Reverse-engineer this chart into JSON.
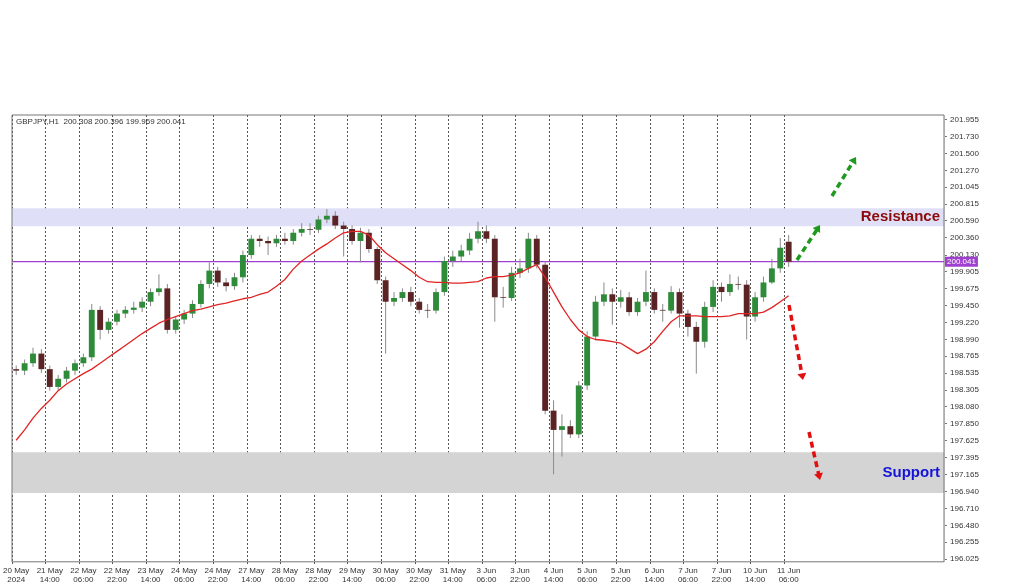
{
  "chart_data": {
    "type": "candlestick",
    "categories": [
      "20 May 2024",
      null,
      null,
      null,
      "21 May 14:00",
      null,
      null,
      null,
      "22 May 06:00",
      null,
      null,
      null,
      "22 May 22:00",
      null,
      null,
      null,
      "23 May 14:00",
      null,
      null,
      null,
      "24 May 06:00",
      null,
      null,
      null,
      "24 May 22:00",
      null,
      null,
      null,
      "27 May 14:00",
      null,
      null,
      null,
      "28 May 06:00",
      null,
      null,
      null,
      "28 May 22:00",
      null,
      null,
      null,
      "29 May 14:00",
      null,
      null,
      null,
      "30 May 06:00",
      null,
      null,
      null,
      "30 May 22:00",
      null,
      null,
      null,
      "31 May 14:00",
      null,
      null,
      null,
      "3 Jun 06:00",
      null,
      null,
      null,
      "3 Jun 22:00",
      null,
      null,
      null,
      "4 Jun 14:00",
      null,
      null,
      null,
      "5 Jun 06:00",
      null,
      null,
      null,
      "5 Jun 22:00",
      null,
      null,
      null,
      "6 Jun 14:00",
      null,
      null,
      null,
      "7 Jun 06:00",
      null,
      null,
      null,
      "7 Jun 22:00",
      null,
      null,
      null,
      "10 Jun 14:00",
      null,
      null,
      null,
      "11 Jun 06:00",
      null,
      null,
      null,
      null,
      null,
      null,
      null,
      null,
      null,
      null,
      null,
      null,
      null,
      null,
      null,
      null,
      null,
      null
    ],
    "ohlc": [
      [
        198.59,
        198.64,
        198.51,
        198.57
      ],
      [
        198.57,
        198.72,
        198.51,
        198.67
      ],
      [
        198.67,
        198.88,
        198.62,
        198.8
      ],
      [
        198.8,
        198.86,
        198.54,
        198.59
      ],
      [
        198.59,
        198.64,
        198.3,
        198.35
      ],
      [
        198.35,
        198.51,
        198.3,
        198.46
      ],
      [
        198.46,
        198.62,
        198.41,
        198.57
      ],
      [
        198.57,
        198.72,
        198.51,
        198.67
      ],
      [
        198.67,
        198.8,
        198.62,
        198.75
      ],
      [
        198.75,
        199.47,
        198.7,
        199.39
      ],
      [
        199.39,
        199.44,
        198.99,
        199.12
      ],
      [
        199.12,
        199.28,
        199.07,
        199.23
      ],
      [
        199.23,
        199.39,
        199.18,
        199.34
      ],
      [
        199.34,
        199.44,
        199.28,
        199.39
      ],
      [
        199.39,
        199.5,
        199.34,
        199.42
      ],
      [
        199.42,
        199.56,
        199.36,
        199.5
      ],
      [
        199.5,
        199.68,
        199.44,
        199.63
      ],
      [
        199.63,
        199.87,
        199.58,
        199.68
      ],
      [
        199.68,
        199.74,
        199.07,
        199.12
      ],
      [
        199.12,
        199.31,
        199.07,
        199.26
      ],
      [
        199.26,
        199.39,
        199.2,
        199.34
      ],
      [
        199.34,
        199.52,
        199.28,
        199.47
      ],
      [
        199.47,
        199.79,
        199.42,
        199.74
      ],
      [
        199.74,
        200.03,
        199.68,
        199.92
      ],
      [
        199.92,
        199.97,
        199.7,
        199.76
      ],
      [
        199.76,
        199.82,
        199.64,
        199.71
      ],
      [
        199.71,
        199.89,
        199.66,
        199.83
      ],
      [
        199.83,
        200.19,
        199.76,
        200.13
      ],
      [
        200.13,
        200.4,
        200.08,
        200.35
      ],
      [
        200.35,
        200.4,
        200.24,
        200.32
      ],
      [
        200.32,
        200.38,
        200.13,
        200.29
      ],
      [
        200.29,
        200.4,
        200.24,
        200.35
      ],
      [
        200.35,
        200.43,
        200.27,
        200.32
      ],
      [
        200.32,
        200.48,
        200.27,
        200.43
      ],
      [
        200.43,
        200.56,
        200.38,
        200.48
      ],
      [
        200.48,
        200.56,
        200.4,
        200.47
      ],
      [
        200.47,
        200.66,
        200.43,
        200.61
      ],
      [
        200.61,
        200.75,
        200.56,
        200.66
      ],
      [
        200.66,
        200.72,
        200.48,
        200.53
      ],
      [
        200.53,
        200.58,
        200.11,
        200.48
      ],
      [
        200.48,
        200.53,
        200.27,
        200.32
      ],
      [
        200.32,
        200.5,
        200.03,
        200.43
      ],
      [
        200.43,
        200.48,
        200.16,
        200.21
      ],
      [
        200.21,
        200.24,
        199.74,
        199.79
      ],
      [
        199.79,
        199.84,
        198.8,
        199.5
      ],
      [
        199.5,
        199.63,
        199.44,
        199.55
      ],
      [
        199.55,
        199.68,
        199.5,
        199.63
      ],
      [
        199.63,
        199.7,
        199.44,
        199.5
      ],
      [
        199.5,
        199.55,
        199.34,
        199.39
      ],
      [
        199.39,
        199.47,
        199.28,
        199.38
      ],
      [
        199.38,
        199.68,
        199.34,
        199.63
      ],
      [
        199.63,
        200.11,
        199.58,
        200.05
      ],
      [
        200.05,
        200.19,
        199.97,
        200.11
      ],
      [
        200.11,
        200.27,
        200.05,
        200.19
      ],
      [
        200.19,
        200.43,
        200.13,
        200.35
      ],
      [
        200.35,
        200.58,
        200.29,
        200.45
      ],
      [
        200.45,
        200.53,
        200.29,
        200.35
      ],
      [
        200.35,
        200.4,
        199.23,
        199.56
      ],
      [
        199.56,
        199.7,
        199.42,
        199.55
      ],
      [
        199.55,
        199.97,
        199.51,
        199.89
      ],
      [
        199.89,
        200.08,
        199.82,
        199.95
      ],
      [
        199.95,
        200.43,
        199.89,
        200.35
      ],
      [
        200.35,
        200.4,
        199.95,
        200.0
      ],
      [
        200.0,
        200.05,
        197.98,
        198.03
      ],
      [
        198.03,
        198.17,
        197.17,
        197.77
      ],
      [
        197.77,
        197.98,
        197.41,
        197.82
      ],
      [
        197.82,
        197.9,
        197.66,
        197.71
      ],
      [
        197.71,
        198.43,
        197.66,
        198.37
      ],
      [
        198.37,
        199.1,
        198.31,
        199.03
      ],
      [
        199.03,
        199.58,
        198.98,
        199.5
      ],
      [
        199.5,
        199.76,
        199.44,
        199.6
      ],
      [
        199.6,
        199.68,
        199.19,
        199.5
      ],
      [
        199.5,
        199.66,
        199.42,
        199.56
      ],
      [
        199.56,
        199.63,
        199.31,
        199.36
      ],
      [
        199.36,
        199.55,
        199.31,
        199.5
      ],
      [
        199.5,
        199.92,
        199.44,
        199.63
      ],
      [
        199.63,
        199.68,
        199.34,
        199.39
      ],
      [
        199.39,
        199.47,
        199.23,
        199.38
      ],
      [
        199.38,
        199.71,
        199.34,
        199.63
      ],
      [
        199.63,
        199.68,
        199.15,
        199.34
      ],
      [
        199.34,
        199.39,
        199.03,
        199.16
      ],
      [
        199.16,
        199.23,
        198.53,
        198.96
      ],
      [
        198.96,
        199.5,
        198.88,
        199.43
      ],
      [
        199.43,
        199.79,
        199.36,
        199.7
      ],
      [
        199.7,
        199.76,
        199.5,
        199.63
      ],
      [
        199.63,
        199.87,
        199.58,
        199.74
      ],
      [
        199.74,
        199.84,
        199.66,
        199.73
      ],
      [
        199.73,
        199.79,
        198.99,
        199.3
      ],
      [
        199.3,
        199.63,
        199.23,
        199.56
      ],
      [
        199.56,
        199.84,
        199.5,
        199.76
      ],
      [
        199.76,
        200.08,
        199.74,
        199.95
      ],
      [
        199.95,
        200.36,
        199.89,
        200.23
      ],
      [
        200.31,
        200.4,
        199.97,
        200.04
      ],
      null,
      null,
      null,
      null,
      null,
      null,
      null,
      null,
      null,
      null,
      null,
      null,
      null,
      null,
      null,
      null,
      null,
      null
    ],
    "series": [
      {
        "type": "line",
        "color": "#e02424",
        "values": [
          197.63,
          197.77,
          197.93,
          198.06,
          198.17,
          198.3,
          198.39,
          198.46,
          198.53,
          198.59,
          198.67,
          198.75,
          198.83,
          198.91,
          198.99,
          199.07,
          199.14,
          199.21,
          199.26,
          199.3,
          199.34,
          199.38,
          199.4,
          199.43,
          199.46,
          199.48,
          199.51,
          199.54,
          199.56,
          199.6,
          199.63,
          199.71,
          199.8,
          199.94,
          200.05,
          200.13,
          200.21,
          200.28,
          200.36,
          200.43,
          200.45,
          200.45,
          200.4,
          200.27,
          200.16,
          200.08,
          200.0,
          199.92,
          199.83,
          199.77,
          199.76,
          199.76,
          199.75,
          199.75,
          199.76,
          199.77,
          199.82,
          199.84,
          199.84,
          199.86,
          199.89,
          199.95,
          200.0,
          199.83,
          199.63,
          199.43,
          199.26,
          199.12,
          199.03,
          198.99,
          198.98,
          198.96,
          198.94,
          198.87,
          198.8,
          198.86,
          198.96,
          199.1,
          199.23,
          199.31,
          199.31,
          199.31,
          199.3,
          199.3,
          199.3,
          199.31,
          199.34,
          199.34,
          199.34,
          199.36,
          199.42,
          199.5,
          199.58,
          null,
          null,
          null,
          null,
          null,
          null,
          null,
          null,
          null,
          null,
          null,
          null,
          null,
          null,
          null,
          null,
          null,
          null
        ]
      }
    ],
    "ylim": [
      195.99,
      202.02
    ],
    "yticks": [
      201.955,
      {
        "value": 201.73,
        "label": "201.730"
      },
      {
        "value": 201.5,
        "label": "201.500"
      },
      {
        "value": 201.27,
        "label": "201.270"
      },
      201.045,
      200.815,
      {
        "value": 200.59,
        "label": "200.590"
      },
      {
        "value": 200.36,
        "label": "200.360"
      },
      {
        "value": 200.13,
        "label": "200.130"
      },
      199.905,
      199.675,
      {
        "value": 199.45,
        "label": "199.450"
      },
      {
        "value": 199.22,
        "label": "199.220"
      },
      {
        "value": 198.99,
        "label": "198.990"
      },
      198.765,
      198.535,
      198.305,
      {
        "value": 198.08,
        "label": "198.080"
      },
      {
        "value": 197.85,
        "label": "197.850"
      },
      197.625,
      197.395,
      197.165,
      {
        "value": 196.94,
        "label": "196.940"
      },
      {
        "value": 196.71,
        "label": "196.710"
      },
      {
        "value": 196.48,
        "label": "196.480"
      },
      196.255,
      196.025
    ],
    "grid": "x",
    "ref_lines": [
      {
        "axis": "y",
        "value": 200.041,
        "label": "200.041",
        "color": "#a040d0"
      }
    ],
    "bands": [
      {
        "axis": "y",
        "from": 200.52,
        "to": 200.76,
        "label": "Resistance",
        "color": "#dfe0f7"
      },
      {
        "axis": "y",
        "from": 196.92,
        "to": 197.47,
        "label": "Support",
        "color": "#d4d4d4"
      }
    ],
    "annotations": [
      "GBPJPY,H1  200.308 200.396 199.969 200.041"
    ]
  }
}
